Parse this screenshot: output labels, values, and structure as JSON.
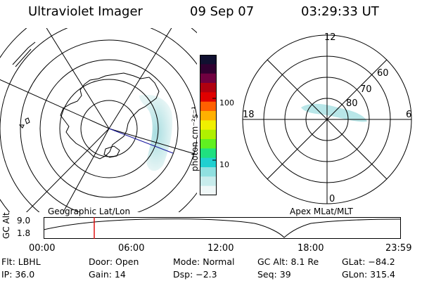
{
  "header": {
    "title": "Ultraviolet Imager",
    "date": "09 Sep 07",
    "time": "03:29:33 UT"
  },
  "colorbar": {
    "unit_label": "photon cm⁻²s⁻¹",
    "ticks": [
      "100",
      "10"
    ],
    "colors": [
      "#101030",
      "#300030",
      "#700040",
      "#b00010",
      "#e00000",
      "#ff6000",
      "#ffb000",
      "#f0f000",
      "#b0f000",
      "#60f020",
      "#20e080",
      "#20d0d0",
      "#90e0e0",
      "#c8ecec",
      "#f0f8f8"
    ]
  },
  "polar_plot": {
    "mlt_labels": {
      "top": "12",
      "left": "18",
      "right": "6",
      "bottom": "0"
    },
    "lat_labels": [
      "60",
      "70",
      "80"
    ]
  },
  "strip": {
    "left_title": "Geographic Lat/Lon",
    "right_title": "Apex MLat/MLT",
    "y_axis_label": "GC Alt",
    "y_ticks": [
      "9.0",
      "1.8"
    ],
    "x_ticks": [
      "00:00",
      "06:00",
      "12:00",
      "18:00",
      "23:59"
    ],
    "marker_color": "#dd0000"
  },
  "info": {
    "flt": "Flt: LBHL",
    "door": "Door: Open",
    "mode": "Mode: Normal",
    "gc_alt": "GC Alt: 8.1 Re",
    "glat": "GLat: −84.2",
    "ip": "IP: 36.0",
    "gain": "Gain: 14",
    "dsp": "Dsp:   −2.3",
    "seq": "Seq: 39",
    "glon": "GLon: 315.4"
  }
}
